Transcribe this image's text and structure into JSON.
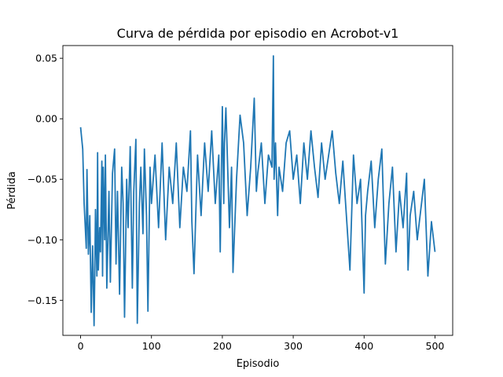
{
  "chart_data": {
    "type": "line",
    "title": "Curva de pérdida por episodio en Acrobot-v1",
    "xlabel": "Episodio",
    "ylabel": "Pérdida",
    "xlim": [
      -25,
      525
    ],
    "ylim": [
      -0.179,
      0.0605
    ],
    "xticks": [
      0,
      100,
      200,
      300,
      400,
      500
    ],
    "xtick_labels": [
      "0",
      "100",
      "200",
      "300",
      "400",
      "500"
    ],
    "yticks": [
      0.05,
      0.0,
      -0.05,
      -0.1,
      -0.15
    ],
    "ytick_labels": [
      "0.05",
      "0.00",
      "−0.05",
      "−0.10",
      "−0.15"
    ],
    "grid": false,
    "legend": "none",
    "colors": {
      "line": "#1f77b4",
      "axes": "#000000",
      "background": "#ffffff"
    },
    "series": [
      {
        "x": [
          0,
          3,
          5,
          8,
          9,
          11,
          13,
          15,
          17,
          19,
          20,
          21,
          23,
          24,
          25,
          27,
          28,
          30,
          31,
          32,
          34,
          35,
          37,
          40,
          42,
          45,
          48,
          50,
          52,
          55,
          58,
          60,
          62,
          65,
          67,
          70,
          73,
          75,
          78,
          80,
          83,
          85,
          88,
          90,
          93,
          95,
          98,
          100,
          105,
          110,
          115,
          120,
          125,
          130,
          135,
          140,
          145,
          150,
          155,
          157,
          160,
          165,
          170,
          175,
          180,
          185,
          190,
          195,
          197,
          200,
          202,
          203,
          205,
          207,
          210,
          213,
          215,
          220,
          225,
          230,
          235,
          240,
          245,
          248,
          250,
          255,
          260,
          265,
          270,
          272,
          273,
          275,
          278,
          280,
          285,
          290,
          295,
          300,
          305,
          310,
          315,
          320,
          325,
          330,
          335,
          340,
          345,
          350,
          355,
          360,
          365,
          370,
          375,
          380,
          385,
          390,
          395,
          400,
          402,
          405,
          410,
          415,
          420,
          425,
          430,
          435,
          440,
          445,
          450,
          455,
          460,
          462,
          465,
          470,
          475,
          480,
          485,
          490,
          495,
          500
        ],
        "values": [
          -0.007,
          -0.025,
          -0.07,
          -0.107,
          -0.042,
          -0.112,
          -0.08,
          -0.16,
          -0.105,
          -0.171,
          -0.13,
          -0.075,
          -0.13,
          -0.028,
          -0.125,
          -0.09,
          -0.11,
          -0.035,
          -0.13,
          -0.04,
          -0.1,
          -0.03,
          -0.14,
          -0.06,
          -0.135,
          -0.045,
          -0.025,
          -0.12,
          -0.06,
          -0.145,
          -0.04,
          -0.07,
          -0.164,
          -0.05,
          -0.09,
          -0.023,
          -0.14,
          -0.06,
          -0.017,
          -0.169,
          -0.07,
          -0.04,
          -0.095,
          -0.025,
          -0.08,
          -0.159,
          -0.04,
          -0.07,
          -0.03,
          -0.09,
          -0.02,
          -0.1,
          -0.04,
          -0.07,
          -0.02,
          -0.09,
          -0.04,
          -0.06,
          -0.01,
          -0.085,
          -0.128,
          -0.03,
          -0.08,
          -0.02,
          -0.06,
          -0.01,
          -0.07,
          -0.03,
          -0.11,
          0.01,
          -0.07,
          -0.02,
          0.009,
          -0.03,
          -0.09,
          -0.04,
          -0.127,
          -0.05,
          0.003,
          -0.02,
          -0.08,
          -0.04,
          0.017,
          -0.06,
          -0.045,
          -0.02,
          -0.07,
          -0.03,
          -0.04,
          0.052,
          -0.05,
          -0.02,
          -0.08,
          -0.04,
          -0.06,
          -0.02,
          -0.01,
          -0.05,
          -0.03,
          -0.07,
          -0.02,
          -0.05,
          -0.01,
          -0.04,
          -0.065,
          -0.02,
          -0.05,
          -0.03,
          -0.01,
          -0.045,
          -0.07,
          -0.035,
          -0.08,
          -0.125,
          -0.03,
          -0.07,
          -0.05,
          -0.144,
          -0.08,
          -0.06,
          -0.035,
          -0.09,
          -0.05,
          -0.025,
          -0.12,
          -0.07,
          -0.04,
          -0.11,
          -0.06,
          -0.09,
          -0.045,
          -0.125,
          -0.08,
          -0.06,
          -0.1,
          -0.075,
          -0.05,
          -0.13,
          -0.085,
          -0.11
        ]
      }
    ]
  }
}
